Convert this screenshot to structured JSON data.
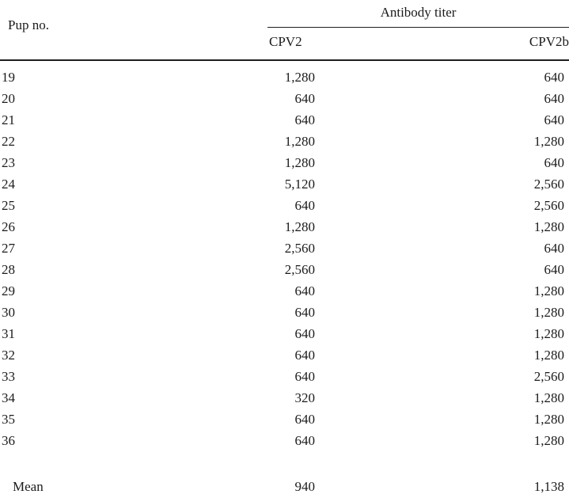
{
  "table": {
    "col1_header": "Pup no.",
    "group_header": "Antibody titer",
    "sub_headers": [
      "CPV2",
      "CPV2b"
    ],
    "rows": [
      {
        "pup": "19",
        "cpv2": "1,280",
        "cpv2b": "640"
      },
      {
        "pup": "20",
        "cpv2": "640",
        "cpv2b": "640"
      },
      {
        "pup": "21",
        "cpv2": "640",
        "cpv2b": "640"
      },
      {
        "pup": "22",
        "cpv2": "1,280",
        "cpv2b": "1,280"
      },
      {
        "pup": "23",
        "cpv2": "1,280",
        "cpv2b": "640"
      },
      {
        "pup": "24",
        "cpv2": "5,120",
        "cpv2b": "2,560"
      },
      {
        "pup": "25",
        "cpv2": "640",
        "cpv2b": "2,560"
      },
      {
        "pup": "26",
        "cpv2": "1,280",
        "cpv2b": "1,280"
      },
      {
        "pup": "27",
        "cpv2": "2,560",
        "cpv2b": "640"
      },
      {
        "pup": "28",
        "cpv2": "2,560",
        "cpv2b": "640"
      },
      {
        "pup": "29",
        "cpv2": "640",
        "cpv2b": "1,280"
      },
      {
        "pup": "30",
        "cpv2": "640",
        "cpv2b": "1,280"
      },
      {
        "pup": "31",
        "cpv2": "640",
        "cpv2b": "1,280"
      },
      {
        "pup": "32",
        "cpv2": "640",
        "cpv2b": "1,280"
      },
      {
        "pup": "33",
        "cpv2": "640",
        "cpv2b": "2,560"
      },
      {
        "pup": "34",
        "cpv2": "320",
        "cpv2b": "1,280"
      },
      {
        "pup": "35",
        "cpv2": "640",
        "cpv2b": "1,280"
      },
      {
        "pup": "36",
        "cpv2": "640",
        "cpv2b": "1,280"
      }
    ],
    "mean_row": {
      "label": "Mean",
      "cpv2": "940",
      "cpv2b": "1,138"
    }
  },
  "colors": {
    "background": "#ffffff",
    "text": "#1b1b1b",
    "rule": "#1f1f1f"
  }
}
